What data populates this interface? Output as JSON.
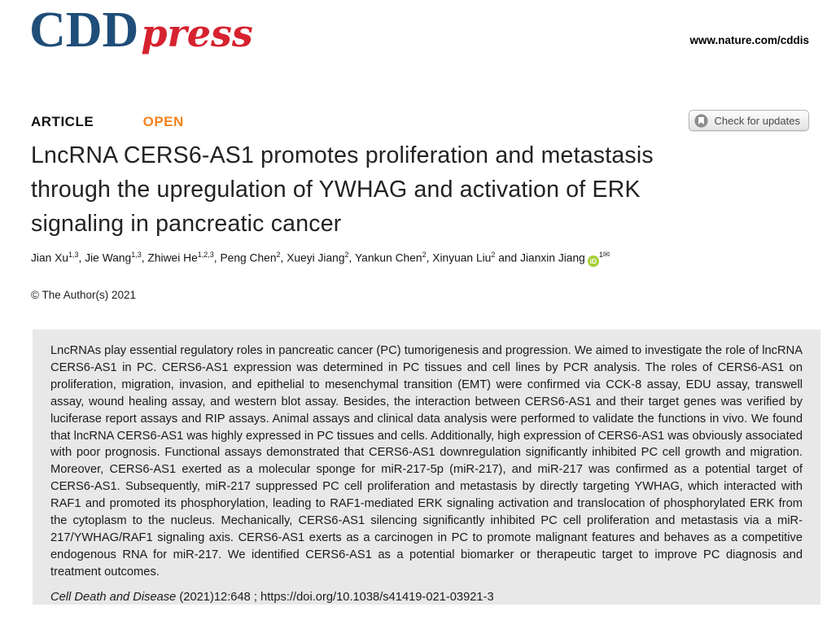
{
  "colors": {
    "brand_blue": "#1f4e79",
    "brand_red": "#d6222e",
    "open_orange": "#f5821f",
    "abstract_bg": "#e8e8e8",
    "orcid_green": "#a6ce39"
  },
  "header": {
    "logo_cdd": "CDD",
    "logo_press": "press",
    "site_url": "www.nature.com/cddis"
  },
  "meta_row": {
    "article_label": "ARTICLE",
    "open_label": "OPEN",
    "check_updates_label": "Check for updates"
  },
  "icons": {
    "crossmark_icon": "circle-with-bookmark",
    "orcid_icon_text": "iD",
    "envelope_glyph": "✉"
  },
  "title": {
    "lines": [
      "LncRNA CERS6-AS1 promotes proliferation and metastasis",
      "through the upregulation of YWHAG and activation of ERK",
      "signaling in pancreatic cancer"
    ]
  },
  "authors": {
    "and_word": "and",
    "list": [
      {
        "name": "Jian Xu",
        "sup": "1,3"
      },
      {
        "name": "Jie Wang",
        "sup": "1,3"
      },
      {
        "name": "Zhiwei He",
        "sup": "1,2,3"
      },
      {
        "name": "Peng Chen",
        "sup": "2"
      },
      {
        "name": "Xueyi Jiang",
        "sup": "2"
      },
      {
        "name": "Yankun Chen",
        "sup": "2"
      },
      {
        "name": "Xinyuan Liu",
        "sup": "2"
      },
      {
        "name": "Jianxin Jiang",
        "sup": "1",
        "orcid": true,
        "email": true
      }
    ]
  },
  "copyright": "© The Author(s) 2021",
  "abstract": {
    "text": "LncRNAs play essential regulatory roles in pancreatic cancer (PC) tumorigenesis and progression. We aimed to investigate the role of lncRNA CERS6-AS1 in PC. CERS6-AS1 expression was determined in PC tissues and cell lines by PCR analysis. The roles of CERS6-AS1 on proliferation, migration, invasion, and epithelial to mesenchymal transition (EMT) were confirmed via CCK-8 assay, EDU assay, transwell assay, wound healing assay, and western blot assay. Besides, the interaction between CERS6-AS1 and their target genes was verified by luciferase report assays and RIP assays. Animal assays and clinical data analysis were performed to validate the functions in vivo. We found that lncRNA CERS6-AS1 was highly expressed in PC tissues and cells. Additionally, high expression of CERS6-AS1 was obviously associated with poor prognosis. Functional assays demonstrated that CERS6-AS1 downregulation significantly inhibited PC cell growth and migration. Moreover, CERS6-AS1 exerted as a molecular sponge for miR-217-5p (miR-217), and miR-217 was confirmed as a potential target of CERS6-AS1. Subsequently, miR-217 suppressed PC cell proliferation and metastasis by directly targeting YWHAG, which interacted with RAF1 and promoted its phosphorylation, leading to RAF1-mediated ERK signaling activation and translocation of phosphorylated ERK from the cytoplasm to the nucleus. Mechanically, CERS6-AS1 silencing significantly inhibited PC cell proliferation and metastasis via a miR-217/YWHAG/RAF1 signaling axis. CERS6-AS1 exerts as a carcinogen in PC to promote malignant features and behaves as a competitive endogenous RNA for miR-217. We identified CERS6-AS1 as a potential biomarker or therapeutic target to improve PC diagnosis and treatment outcomes."
  },
  "citation": {
    "journal": "Cell Death and Disease",
    "rest": "(2021)12:648 ; https://doi.org/10.1038/s41419-021-03921-3"
  }
}
